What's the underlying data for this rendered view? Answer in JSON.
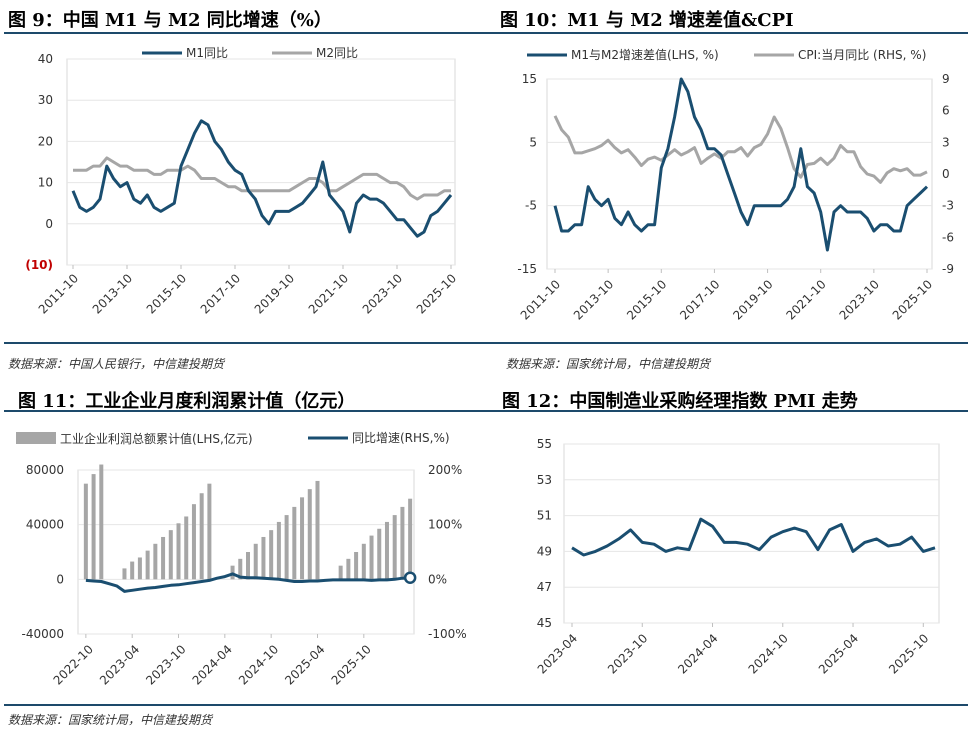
{
  "panels": {
    "p9": {
      "title": "图 9：中国 M1 与 M2 同比增速（%）",
      "source": "数据来源：中国人民银行，中信建投期货"
    },
    "p10": {
      "title": "图 10：M1 与 M2 增速差值&CPI",
      "source": "数据来源：国家统计局，中信建投期货"
    },
    "p11": {
      "title": "图 11：工业企业月度利润累计值（亿元）",
      "source": "数据来源：国家统计局，中信建投期货"
    },
    "p12": {
      "title": "图 12：中国制造业采购经理指数 PMI 走势"
    }
  },
  "colors": {
    "navy": "#1a4e70",
    "gray": "#a6a6a6",
    "red": "#c00000",
    "rule": "#1d4a6b"
  },
  "chart_data": [
    {
      "id": "m1m2",
      "type": "line",
      "title": "图 9：中国 M1 与 M2 同比增速（%）",
      "x_labels": [
        "2011-10",
        "2013-10",
        "2015-10",
        "2017-10",
        "2019-10",
        "2021-10",
        "2023-10",
        "2025-10"
      ],
      "ylim": [
        -10,
        40
      ],
      "y_ticks": [
        40,
        30,
        20,
        10,
        0,
        -10
      ],
      "y_tick_labels": [
        "40",
        "30",
        "20",
        "10",
        "0",
        "(10)"
      ],
      "series": [
        {
          "name": "M1同比",
          "color": "#1a4e70",
          "x": [
            2011.75,
            2012,
            2012.25,
            2012.5,
            2012.75,
            2013,
            2013.25,
            2013.5,
            2013.75,
            2014,
            2014.25,
            2014.5,
            2014.75,
            2015,
            2015.25,
            2015.5,
            2015.75,
            2016,
            2016.25,
            2016.5,
            2016.75,
            2017,
            2017.25,
            2017.5,
            2017.75,
            2018,
            2018.25,
            2018.5,
            2018.75,
            2019,
            2019.25,
            2019.5,
            2019.75,
            2020,
            2020.25,
            2020.5,
            2020.75,
            2021,
            2021.25,
            2021.5,
            2021.75,
            2022,
            2022.25,
            2022.5,
            2022.75,
            2023,
            2023.25,
            2023.5,
            2023.75,
            2024,
            2024.25,
            2024.5,
            2024.75,
            2025,
            2025.25,
            2025.5,
            2025.75
          ],
          "values": [
            8,
            4,
            3,
            4,
            6,
            14,
            11,
            9,
            10,
            6,
            5,
            7,
            4,
            3,
            4,
            5,
            14,
            18,
            22,
            25,
            24,
            20,
            18,
            15,
            13,
            12,
            8,
            6,
            2,
            0,
            3,
            3,
            3,
            4,
            5,
            7,
            9,
            15,
            7,
            5,
            3,
            -2,
            5,
            7,
            6,
            6,
            5,
            3,
            1,
            1,
            -1,
            -3,
            -2,
            2,
            3,
            5,
            7
          ]
        },
        {
          "name": "M2同比",
          "color": "#a6a6a6",
          "x": [
            2011.75,
            2012,
            2012.25,
            2012.5,
            2012.75,
            2013,
            2013.25,
            2013.5,
            2013.75,
            2014,
            2014.25,
            2014.5,
            2014.75,
            2015,
            2015.25,
            2015.5,
            2015.75,
            2016,
            2016.25,
            2016.5,
            2016.75,
            2017,
            2017.25,
            2017.5,
            2017.75,
            2018,
            2018.25,
            2018.5,
            2018.75,
            2019,
            2019.25,
            2019.5,
            2019.75,
            2020,
            2020.25,
            2020.5,
            2020.75,
            2021,
            2021.25,
            2021.5,
            2021.75,
            2022,
            2022.25,
            2022.5,
            2022.75,
            2023,
            2023.25,
            2023.5,
            2023.75,
            2024,
            2024.25,
            2024.5,
            2024.75,
            2025,
            2025.25,
            2025.5,
            2025.75
          ],
          "values": [
            13,
            13,
            13,
            14,
            14,
            16,
            15,
            14,
            14,
            13,
            13,
            13,
            12,
            12,
            13,
            13,
            13,
            14,
            13,
            11,
            11,
            11,
            10,
            9,
            9,
            8,
            8,
            8,
            8,
            8,
            8,
            8,
            8,
            9,
            10,
            11,
            11,
            10,
            8,
            8,
            9,
            10,
            11,
            12,
            12,
            12,
            11,
            10,
            10,
            9,
            7,
            6,
            7,
            7,
            7,
            8,
            8
          ]
        }
      ]
    },
    {
      "id": "spread_cpi",
      "type": "line",
      "title": "图 10：M1 与 M2 增速差值&CPI",
      "x_labels": [
        "2011-10",
        "2013-10",
        "2015-10",
        "2017-10",
        "2019-10",
        "2021-10",
        "2023-10",
        "2025-10"
      ],
      "ylim_lhs": [
        -15,
        15
      ],
      "y_ticks_lhs": [
        15,
        5,
        -5,
        -15
      ],
      "ylim_rhs": [
        -9,
        9
      ],
      "y_ticks_rhs": [
        9,
        6,
        3,
        0,
        -3,
        -6,
        -9
      ],
      "series": [
        {
          "name": "M1与M2增速差值(LHS, %)",
          "axis": "lhs",
          "color": "#1a4e70",
          "x": [
            2011.75,
            2012,
            2012.25,
            2012.5,
            2012.75,
            2013,
            2013.25,
            2013.5,
            2013.75,
            2014,
            2014.25,
            2014.5,
            2014.75,
            2015,
            2015.25,
            2015.5,
            2015.75,
            2016,
            2016.25,
            2016.5,
            2016.75,
            2017,
            2017.25,
            2017.5,
            2017.75,
            2018,
            2018.25,
            2018.5,
            2018.75,
            2019,
            2019.25,
            2019.5,
            2019.75,
            2020,
            2020.25,
            2020.5,
            2020.75,
            2021,
            2021.25,
            2021.5,
            2021.75,
            2022,
            2022.25,
            2022.5,
            2022.75,
            2023,
            2023.25,
            2023.5,
            2023.75,
            2024,
            2024.25,
            2024.5,
            2024.75,
            2025,
            2025.25,
            2025.5,
            2025.75
          ],
          "values": [
            -5,
            -9,
            -9,
            -8,
            -8,
            -2,
            -4,
            -5,
            -4,
            -7,
            -8,
            -6,
            -8,
            -9,
            -8,
            -8,
            1,
            4,
            9,
            15,
            13,
            9,
            7,
            4,
            4,
            3,
            0,
            -3,
            -6,
            -8,
            -5,
            -5,
            -5,
            -5,
            -5,
            -4,
            -2,
            4,
            -2,
            -3,
            -6,
            -12,
            -6,
            -5,
            -6,
            -6,
            -6,
            -7,
            -9,
            -8,
            -8,
            -9,
            -9,
            -5,
            -4,
            -3,
            -2
          ]
        },
        {
          "name": "CPI:当月同比 (RHS, %)",
          "axis": "rhs",
          "color": "#a6a6a6",
          "x": [
            2011.75,
            2012,
            2012.25,
            2012.5,
            2012.75,
            2013,
            2013.25,
            2013.5,
            2013.75,
            2014,
            2014.25,
            2014.5,
            2014.75,
            2015,
            2015.25,
            2015.5,
            2015.75,
            2016,
            2016.25,
            2016.5,
            2016.75,
            2017,
            2017.25,
            2017.5,
            2017.75,
            2018,
            2018.25,
            2018.5,
            2018.75,
            2019,
            2019.25,
            2019.5,
            2019.75,
            2020,
            2020.25,
            2020.5,
            2020.75,
            2021,
            2021.25,
            2021.5,
            2021.75,
            2022,
            2022.25,
            2022.5,
            2022.75,
            2023,
            2023.25,
            2023.5,
            2023.75,
            2024,
            2024.25,
            2024.5,
            2024.75,
            2025,
            2025.25,
            2025.5,
            2025.75
          ],
          "values": [
            5.5,
            4.2,
            3.5,
            2,
            2,
            2.2,
            2.4,
            2.7,
            3.2,
            2.5,
            2,
            2.3,
            1.6,
            0.8,
            1.4,
            1.6,
            1.3,
            1.8,
            2.3,
            1.8,
            2.1,
            2.5,
            1,
            1.5,
            1.9,
            1.5,
            2.1,
            2.1,
            2.5,
            1.7,
            2.5,
            2.8,
            3.8,
            5.4,
            4.3,
            2.5,
            0.5,
            -0.3,
            0.9,
            1,
            1.5,
            0.9,
            1.5,
            2.7,
            2.1,
            2.1,
            0.7,
            0,
            -0.2,
            -0.8,
            0.1,
            0.5,
            0.3,
            0.5,
            -0.1,
            -0.1,
            0.2
          ]
        }
      ]
    },
    {
      "id": "industrial_profit",
      "type": "bar",
      "title": "图 11：工业企业月度利润累计值（亿元）",
      "x_labels": [
        "2022-10",
        "2023-04",
        "2023-10",
        "2024-04",
        "2024-10",
        "2025-04",
        "2025-10"
      ],
      "ylim_lhs": [
        -40000,
        80000
      ],
      "y_ticks_lhs": [
        80000,
        40000,
        0,
        -40000
      ],
      "ylim_rhs": [
        -100,
        200
      ],
      "y_ticks_rhs": [
        200,
        100,
        0,
        -100
      ],
      "y_tick_labels_rhs": [
        "200%",
        "100%",
        "0%",
        "-100%"
      ],
      "series": [
        {
          "name": "工业企业利润总额累计值(LHS,亿元)",
          "type": "bar",
          "color": "#a6a6a6",
          "values": [
            70000,
            77000,
            84000,
            null,
            null,
            8000,
            13000,
            16000,
            21000,
            26000,
            31000,
            36000,
            41000,
            46000,
            55000,
            63000,
            70000,
            null,
            null,
            10000,
            15000,
            20000,
            26000,
            31000,
            36000,
            42000,
            47000,
            53000,
            60000,
            66000,
            72000,
            null,
            null,
            10000,
            15000,
            20000,
            26000,
            32000,
            37000,
            42000,
            47000,
            53000,
            59000
          ]
        },
        {
          "name": "同比增速(RHS,%)",
          "type": "line",
          "color": "#1a4e70",
          "values": [
            -2,
            -3,
            -4,
            -8,
            -12,
            -22,
            -20,
            -18,
            -16,
            -15,
            -13,
            -11,
            -10,
            -8,
            -6,
            -4,
            -2,
            2,
            5,
            10,
            4,
            3,
            3,
            2,
            1,
            0,
            -2,
            -4,
            -4,
            -3,
            -3,
            -2,
            -1,
            -1,
            -1,
            -1,
            -1,
            -2,
            -1,
            -1,
            0,
            2,
            3
          ]
        }
      ]
    },
    {
      "id": "pmi",
      "type": "line",
      "title": "图 12：中国制造业采购经理指数 PMI 走势",
      "x_labels": [
        "2023-04",
        "2023-10",
        "2024-04",
        "2024-10",
        "2025-04",
        "2025-10"
      ],
      "ylim": [
        45,
        55
      ],
      "y_ticks": [
        55,
        53,
        51,
        49,
        47,
        45
      ],
      "series": [
        {
          "name": "PMI",
          "color": "#1a4e70",
          "values": [
            49.2,
            48.8,
            49,
            49.3,
            49.7,
            50.2,
            49.5,
            49.4,
            49,
            49.2,
            49.1,
            50.8,
            50.4,
            49.5,
            49.5,
            49.4,
            49.1,
            49.8,
            50.1,
            50.3,
            50.1,
            49.1,
            50.2,
            50.5,
            49,
            49.5,
            49.7,
            49.3,
            49.4,
            49.8,
            49,
            49.2
          ]
        }
      ]
    }
  ]
}
